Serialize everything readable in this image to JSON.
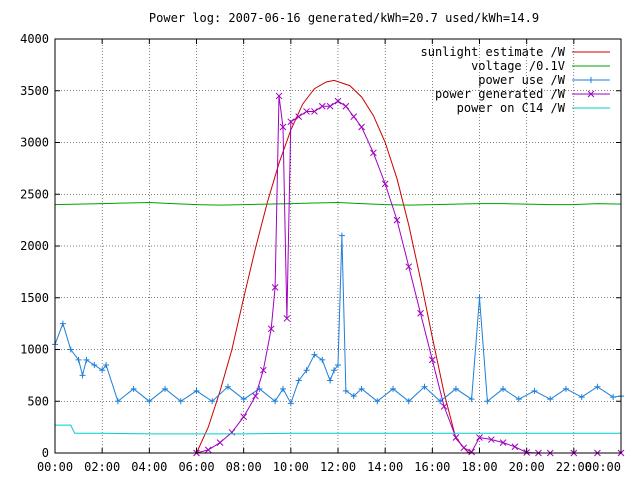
{
  "chart_data": {
    "type": "line",
    "title": "Power log: 2007-06-16 generated/kWh=20.7 used/kWh=14.9",
    "xlabel": "",
    "ylabel": "",
    "xlim": [
      "00:00",
      "24:00"
    ],
    "ylim": [
      0,
      4000
    ],
    "x_ticks": [
      "00:00",
      "02:00",
      "04:00",
      "06:00",
      "08:00",
      "10:00",
      "12:00",
      "14:00",
      "16:00",
      "18:00",
      "20:00",
      "22:00",
      "00:00"
    ],
    "y_ticks": [
      0,
      500,
      1000,
      1500,
      2000,
      2500,
      3000,
      3500,
      4000
    ],
    "grid": true,
    "legend_position": "top-right",
    "series": [
      {
        "name": "sunlight estimate /W",
        "color": "#cc0000",
        "marker": "none",
        "x": [
          "06:00",
          "06:30",
          "07:00",
          "07:30",
          "08:00",
          "08:30",
          "09:00",
          "09:30",
          "10:00",
          "10:30",
          "11:00",
          "11:30",
          "11:50",
          "12:30",
          "13:00",
          "13:30",
          "14:00",
          "14:30",
          "15:00",
          "15:30",
          "16:00",
          "16:30",
          "17:00",
          "17:30",
          "17:45"
        ],
        "values": [
          0,
          250,
          600,
          1000,
          1500,
          1980,
          2420,
          2800,
          3120,
          3370,
          3520,
          3585,
          3600,
          3550,
          3440,
          3260,
          3000,
          2650,
          2200,
          1680,
          1120,
          580,
          140,
          10,
          0
        ]
      },
      {
        "name": "voltage /0.1V",
        "color": "#00a000",
        "marker": "none",
        "x": [
          "00:00",
          "01:00",
          "02:00",
          "03:00",
          "04:00",
          "05:00",
          "06:00",
          "07:00",
          "08:00",
          "09:00",
          "10:00",
          "11:00",
          "12:00",
          "13:00",
          "14:00",
          "15:00",
          "16:00",
          "17:00",
          "18:00",
          "19:00",
          "20:00",
          "21:00",
          "22:00",
          "23:00",
          "24:00"
        ],
        "values": [
          2400,
          2405,
          2410,
          2415,
          2420,
          2410,
          2400,
          2395,
          2400,
          2405,
          2410,
          2415,
          2420,
          2410,
          2400,
          2395,
          2400,
          2405,
          2410,
          2410,
          2405,
          2400,
          2400,
          2410,
          2405
        ]
      },
      {
        "name": "power use /W",
        "color": "#1e7fd8",
        "marker": "plus",
        "x": [
          "00:00",
          "00:20",
          "00:40",
          "01:00",
          "01:10",
          "01:20",
          "01:40",
          "02:00",
          "02:10",
          "02:40",
          "03:20",
          "04:00",
          "04:40",
          "05:20",
          "06:00",
          "06:40",
          "07:20",
          "08:00",
          "08:40",
          "09:20",
          "09:40",
          "10:00",
          "10:20",
          "10:40",
          "11:00",
          "11:20",
          "11:40",
          "11:50",
          "12:00",
          "12:10",
          "12:20",
          "12:40",
          "13:00",
          "13:40",
          "14:20",
          "15:00",
          "15:40",
          "16:20",
          "17:00",
          "17:40",
          "18:00",
          "18:20",
          "19:00",
          "19:40",
          "20:20",
          "21:00",
          "21:40",
          "22:20",
          "23:00",
          "23:40",
          "24:00"
        ],
        "values": [
          1050,
          1250,
          1000,
          900,
          750,
          900,
          850,
          800,
          850,
          500,
          620,
          500,
          620,
          500,
          600,
          500,
          640,
          520,
          620,
          500,
          620,
          480,
          700,
          800,
          950,
          900,
          700,
          800,
          850,
          2100,
          600,
          550,
          620,
          500,
          620,
          500,
          640,
          500,
          620,
          520,
          1500,
          500,
          620,
          520,
          600,
          520,
          620,
          540,
          640,
          540,
          550
        ]
      },
      {
        "name": "power generated /W",
        "color": "#a000c0",
        "marker": "cross",
        "x": [
          "06:00",
          "06:30",
          "07:00",
          "07:30",
          "08:00",
          "08:30",
          "08:50",
          "09:10",
          "09:20",
          "09:30",
          "09:40",
          "09:50",
          "10:00",
          "10:20",
          "10:40",
          "11:00",
          "11:20",
          "11:40",
          "12:00",
          "12:20",
          "12:40",
          "13:00",
          "13:30",
          "14:00",
          "14:30",
          "15:00",
          "15:30",
          "16:00",
          "16:30",
          "17:00",
          "17:20",
          "17:40",
          "18:00",
          "18:30",
          "19:00",
          "19:30",
          "20:00",
          "20:30",
          "21:00",
          "22:00",
          "23:00",
          "24:00"
        ],
        "values": [
          0,
          30,
          100,
          200,
          350,
          550,
          800,
          1200,
          1600,
          3450,
          3150,
          1300,
          3200,
          3250,
          3300,
          3300,
          3350,
          3350,
          3400,
          3350,
          3250,
          3150,
          2900,
          2600,
          2250,
          1800,
          1350,
          900,
          450,
          150,
          50,
          10,
          150,
          130,
          100,
          60,
          5,
          0,
          0,
          0,
          0,
          0
        ]
      },
      {
        "name": "power on C14 /W",
        "color": "#00cccc",
        "marker": "none",
        "x": [
          "00:00",
          "00:40",
          "00:50",
          "02:00",
          "04:00",
          "06:00",
          "08:00",
          "10:00",
          "12:00",
          "14:00",
          "16:00",
          "18:00",
          "20:00",
          "22:00",
          "24:00"
        ],
        "values": [
          270,
          270,
          190,
          190,
          185,
          185,
          185,
          190,
          190,
          190,
          190,
          190,
          190,
          190,
          190
        ]
      }
    ]
  }
}
